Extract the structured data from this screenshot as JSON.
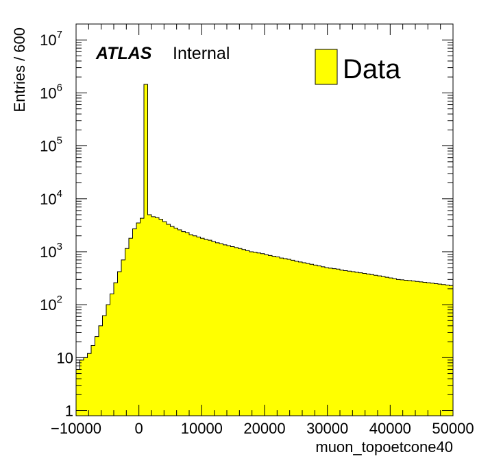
{
  "colors": {
    "fill": "#ffff00",
    "line": "#000000",
    "background": "#ffffff"
  },
  "labels": {
    "atlas": "ATLAS",
    "internal": "Internal",
    "legend_entry": "Data"
  },
  "chart_data": {
    "type": "bar",
    "title": "",
    "xlabel": "muon_topoetcone40",
    "ylabel": "Entries / 600",
    "xlim": [
      -10000,
      50000
    ],
    "ylim": [
      0.8,
      20000000
    ],
    "yscale": "log",
    "bin_width": 600,
    "grid": false,
    "legend": "top-right",
    "x_ticks": [
      {
        "value": -10000,
        "label": "−10000"
      },
      {
        "value": 0,
        "label": "0"
      },
      {
        "value": 10000,
        "label": "10000"
      },
      {
        "value": 20000,
        "label": "20000"
      },
      {
        "value": 30000,
        "label": "30000"
      },
      {
        "value": 40000,
        "label": "40000"
      },
      {
        "value": 50000,
        "label": "50000"
      }
    ],
    "y_ticks": [
      {
        "value": 1,
        "base": "1",
        "exp": ""
      },
      {
        "value": 10,
        "base": "10",
        "exp": ""
      },
      {
        "value": 100,
        "base": "10",
        "exp": "2"
      },
      {
        "value": 1000,
        "base": "10",
        "exp": "3"
      },
      {
        "value": 10000,
        "base": "10",
        "exp": "4"
      },
      {
        "value": 100000,
        "base": "10",
        "exp": "5"
      },
      {
        "value": 1000000,
        "base": "10",
        "exp": "6"
      },
      {
        "value": 10000000,
        "base": "10",
        "exp": "7"
      }
    ],
    "series": [
      {
        "name": "Data",
        "x_start": -10000,
        "values": [
          6,
          9,
          10,
          12,
          17,
          25,
          40,
          62,
          100,
          160,
          260,
          420,
          700,
          1150,
          1800,
          2700,
          3500,
          4300,
          1450000,
          5000,
          4600,
          4400,
          4100,
          3700,
          3300,
          3000,
          2800,
          2600,
          2400,
          2300,
          2100,
          2000,
          1900,
          1800,
          1700,
          1650,
          1550,
          1480,
          1420,
          1350,
          1300,
          1250,
          1200,
          1150,
          1100,
          1050,
          1000,
          980,
          950,
          920,
          880,
          850,
          820,
          800,
          760,
          740,
          720,
          690,
          660,
          640,
          620,
          600,
          580,
          560,
          540,
          520,
          500,
          490,
          480,
          470,
          450,
          440,
          430,
          420,
          410,
          400,
          390,
          380,
          370,
          360,
          350,
          340,
          330,
          320,
          310,
          300,
          295,
          290,
          285,
          280,
          275,
          270,
          265,
          260,
          255,
          250,
          245,
          240,
          235,
          230
        ]
      }
    ]
  }
}
